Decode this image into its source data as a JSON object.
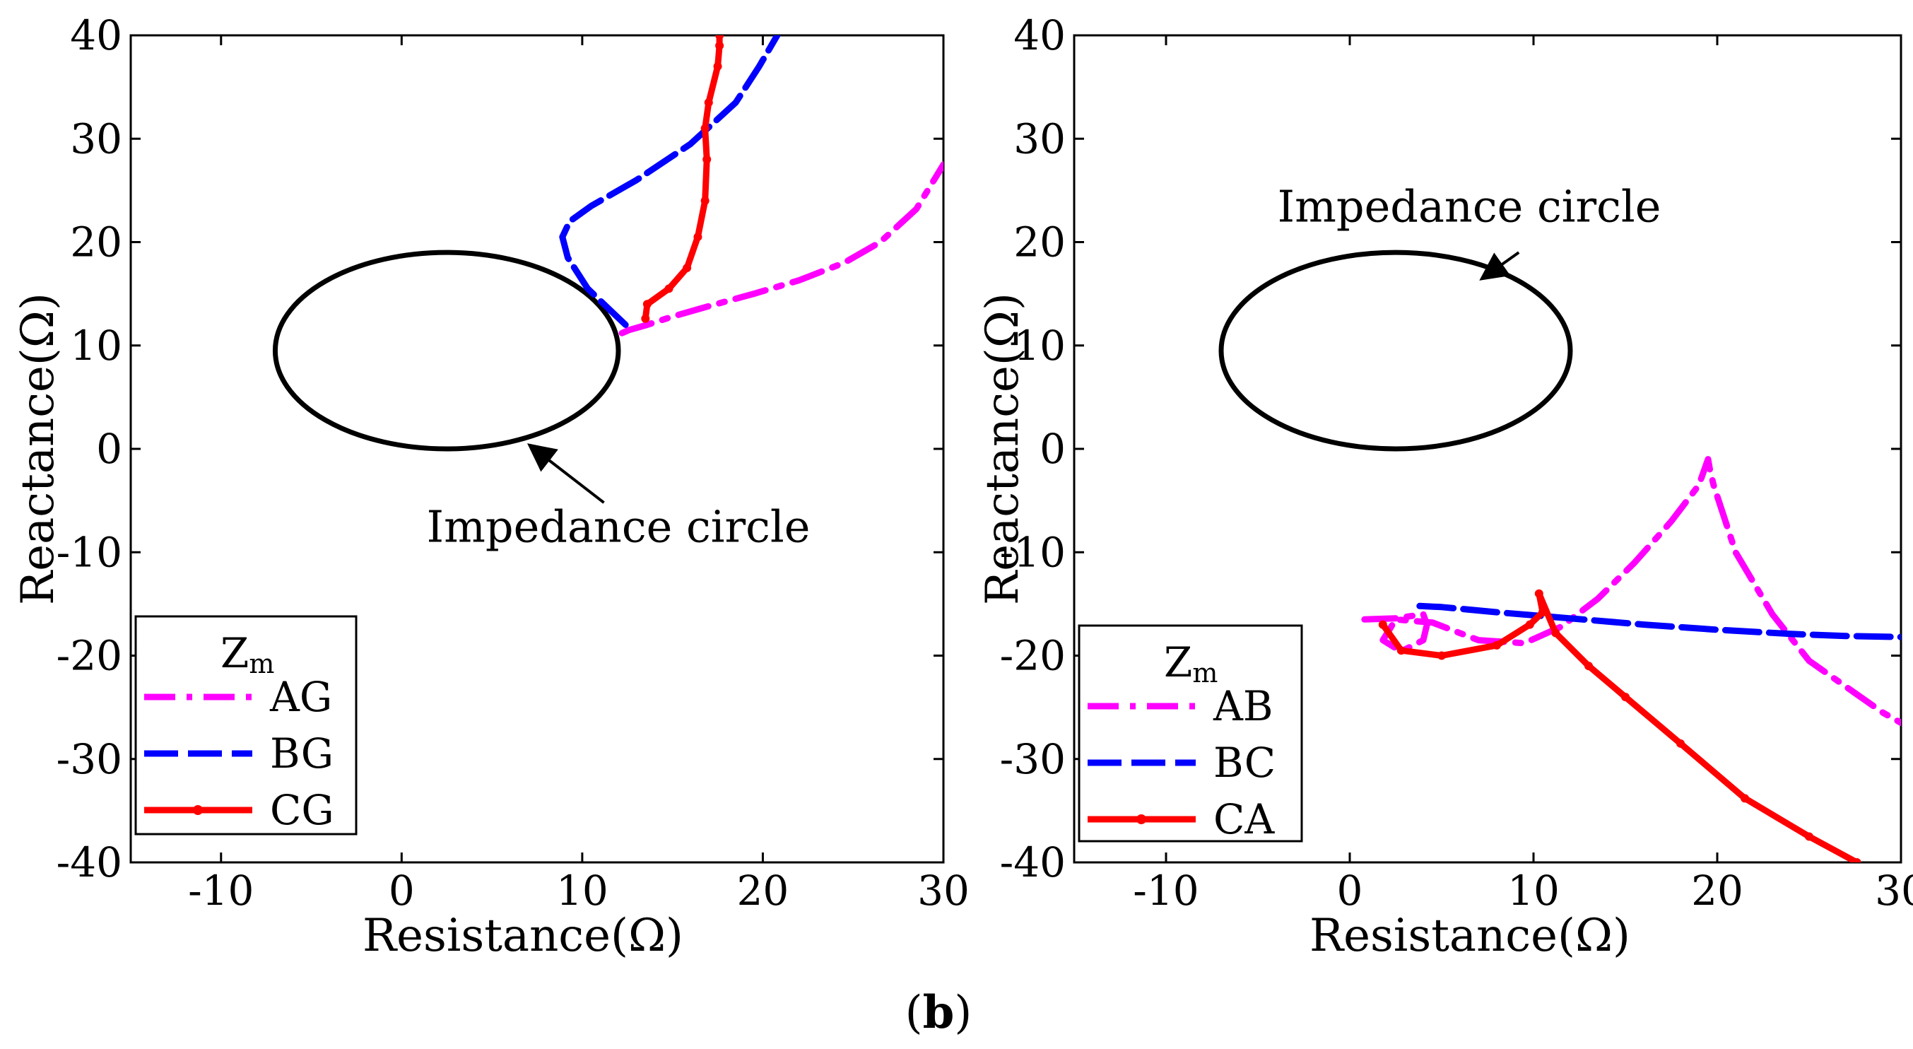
{
  "caption": {
    "open": "(",
    "letter": "b",
    "close": ")"
  },
  "chart_data": [
    {
      "type": "line",
      "panel": "left",
      "xlabel": "Resistance(Ω)",
      "ylabel": "Reactance(Ω)",
      "xlim": [
        -15,
        30
      ],
      "ylim": [
        -40,
        40
      ],
      "xticks": [
        -10,
        0,
        10,
        20,
        30
      ],
      "yticks": [
        -40,
        -30,
        -20,
        -10,
        0,
        10,
        20,
        30,
        40
      ],
      "grid": false,
      "legend_position": "bottom-left",
      "legend_title": {
        "main": "Z",
        "sub": "m"
      },
      "circle": {
        "center": [
          2.5,
          9.5
        ],
        "rx": 9.5,
        "ry": 9.5,
        "stroke": "#000000"
      },
      "annotation": {
        "text": "Impedance circle",
        "text_at": [
          12,
          -9
        ],
        "arrow_from": [
          11.2,
          -5.2
        ],
        "arrow_to": [
          7.2,
          0.2
        ]
      },
      "series": [
        {
          "name": "AG",
          "color": "#ff00ff",
          "dash": "dashdot",
          "x": [
            12.2,
            12.6,
            13.6,
            15.0,
            17.0,
            19.5,
            22.0,
            24.5,
            26.5,
            28.5,
            30.0
          ],
          "y": [
            11.2,
            11.5,
            12.0,
            12.8,
            13.8,
            15.0,
            16.3,
            18.0,
            20.0,
            23.2,
            27.5
          ]
        },
        {
          "name": "BG",
          "color": "#0000ff",
          "dash": "dash",
          "x": [
            12.4,
            11.5,
            10.3,
            9.2,
            8.9,
            9.3,
            10.5,
            13.0,
            16.0,
            18.5,
            19.8,
            20.8
          ],
          "y": [
            12.0,
            13.5,
            15.5,
            18.5,
            20.5,
            22.0,
            23.5,
            26.0,
            29.5,
            33.5,
            37.0,
            40.0
          ]
        },
        {
          "name": "CG",
          "color": "#ff0000",
          "dash": "solid",
          "x": [
            13.5,
            13.6,
            14.8,
            15.8,
            16.4,
            16.8,
            16.9,
            16.8,
            17.0,
            17.5,
            17.6,
            17.6
          ],
          "y": [
            12.6,
            14.0,
            15.5,
            17.5,
            20.5,
            24.0,
            28.0,
            31.0,
            33.5,
            37.0,
            39.0,
            40.0
          ]
        }
      ]
    },
    {
      "type": "line",
      "panel": "right",
      "xlabel": "Resistance(Ω)",
      "ylabel": "Reactance(Ω)",
      "xlim": [
        -15,
        30
      ],
      "ylim": [
        -40,
        40
      ],
      "xticks": [
        -10,
        0,
        10,
        20,
        30
      ],
      "yticks": [
        -40,
        -30,
        -20,
        -10,
        0,
        10,
        20,
        30,
        40
      ],
      "grid": false,
      "legend_position": "bottom-left",
      "legend_title": {
        "main": "Z",
        "sub": "m"
      },
      "circle": {
        "center": [
          2.5,
          9.5
        ],
        "rx": 9.5,
        "ry": 9.5,
        "stroke": "#000000"
      },
      "annotation": {
        "text": "Impedance circle",
        "text_at": [
          6.5,
          22
        ],
        "arrow_from": [
          9.2,
          19.0
        ],
        "arrow_to": [
          7.3,
          16.6
        ]
      },
      "series": [
        {
          "name": "AB",
          "color": "#ff00ff",
          "dash": "dashdot",
          "x": [
            0.8,
            2.5,
            4.0,
            4.2,
            4.0,
            2.8,
            1.8,
            2.5,
            4.5,
            7.0,
            9.5,
            11.5,
            13.5,
            15.5,
            17.5,
            19.0,
            19.5,
            19.6,
            19.8,
            21.0,
            23.0,
            25.0,
            27.0,
            29.0,
            30.0
          ],
          "y": [
            -16.5,
            -16.4,
            -16.0,
            -17.0,
            -18.5,
            -19.6,
            -18.5,
            -16.5,
            -16.8,
            -18.5,
            -18.8,
            -17.2,
            -14.5,
            -11.0,
            -7.0,
            -3.5,
            -1.0,
            -2.0,
            -3.5,
            -10.0,
            -16.0,
            -20.5,
            -23.0,
            -25.5,
            -26.5
          ]
        },
        {
          "name": "BC",
          "color": "#0000ff",
          "dash": "dash",
          "x": [
            3.8,
            5.0,
            8.0,
            12.0,
            16.0,
            20.0,
            24.0,
            27.0,
            30.0
          ],
          "y": [
            -15.2,
            -15.3,
            -15.8,
            -16.4,
            -17.0,
            -17.5,
            -17.9,
            -18.1,
            -18.2
          ]
        },
        {
          "name": "CA",
          "color": "#ff0000",
          "dash": "solid",
          "x": [
            1.8,
            2.8,
            5.0,
            8.0,
            9.8,
            10.5,
            10.3,
            11.2,
            13.0,
            15.0,
            18.0,
            21.5,
            25.0,
            27.6
          ],
          "y": [
            -17.0,
            -19.5,
            -20.0,
            -19.0,
            -17.0,
            -15.8,
            -14.0,
            -17.8,
            -21.0,
            -24.0,
            -28.5,
            -33.8,
            -37.5,
            -40.0
          ]
        }
      ]
    }
  ]
}
